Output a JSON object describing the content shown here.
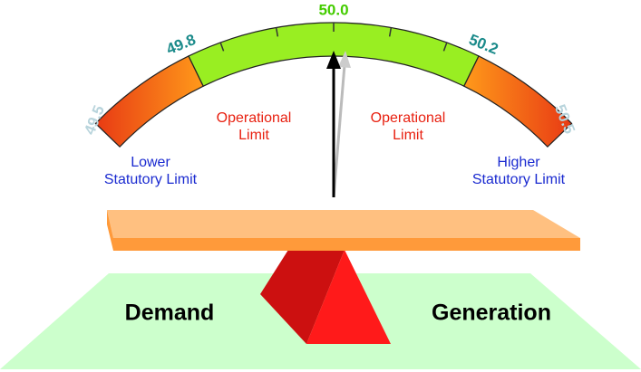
{
  "gauge": {
    "scale_labels": [
      "49.5",
      "49.8",
      "50.0",
      "50.2",
      "50.5"
    ]
  },
  "zones": {
    "operational_left": [
      "Operational",
      "Limit"
    ],
    "operational_right": [
      "Operational",
      "Limit"
    ],
    "statutory_left": [
      "Lower",
      "Statutory Limit"
    ],
    "statutory_right": [
      "Higher",
      "Statutory Limit"
    ]
  },
  "balance": {
    "left": "Demand",
    "right": "Generation"
  }
}
